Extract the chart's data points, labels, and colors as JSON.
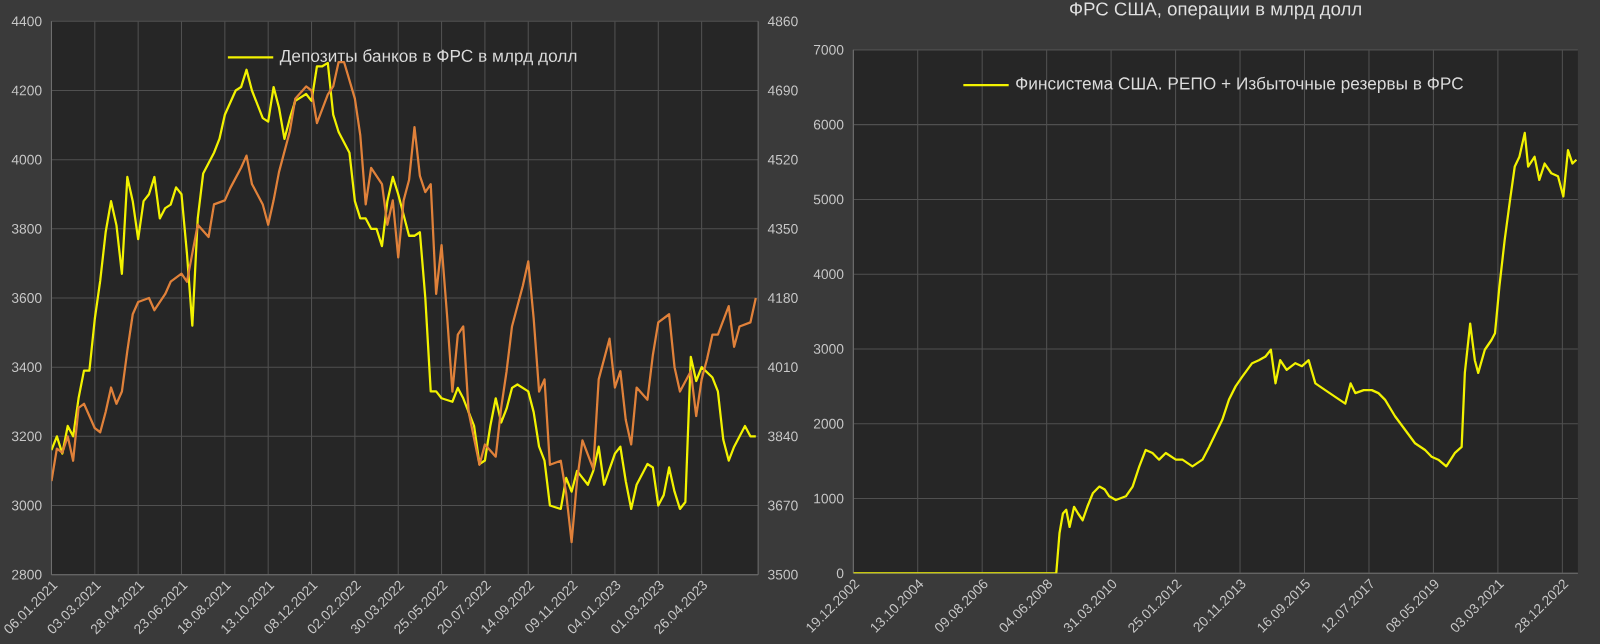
{
  "chart_data": [
    {
      "type": "line",
      "legend": "top",
      "grid": true,
      "xlim": [
        "2021-01-06",
        "2023-07-08"
      ],
      "xticks": [
        {
          "value": "2021-01-06",
          "label": "06.01.2021"
        },
        {
          "value": "2021-03-03",
          "label": "03.03.2021"
        },
        {
          "value": "2021-04-28",
          "label": "28.04.2021"
        },
        {
          "value": "2021-06-23",
          "label": "23.06.2021"
        },
        {
          "value": "2021-08-18",
          "label": "18.08.2021"
        },
        {
          "value": "2021-10-13",
          "label": "13.10.2021"
        },
        {
          "value": "2021-12-08",
          "label": "08.12.2021"
        },
        {
          "value": "2022-02-02",
          "label": "02.02.2022"
        },
        {
          "value": "2022-03-30",
          "label": "30.03.2022"
        },
        {
          "value": "2022-05-25",
          "label": "25.05.2022"
        },
        {
          "value": "2022-07-20",
          "label": "20.07.2022"
        },
        {
          "value": "2022-09-14",
          "label": "14.09.2022"
        },
        {
          "value": "2022-11-09",
          "label": "09.11.2022"
        },
        {
          "value": "2023-01-04",
          "label": "04.01.2023"
        },
        {
          "value": "2023-03-01",
          "label": "01.03.2023"
        },
        {
          "value": "2023-04-26",
          "label": "26.04.2023"
        }
      ],
      "ylim": [
        2800,
        4400
      ],
      "yticks": [
        2800,
        3000,
        3200,
        3400,
        3600,
        3800,
        4000,
        4200,
        4400
      ],
      "y2lim": [
        3500,
        4860
      ],
      "y2ticks": [
        3500,
        3670,
        3840,
        4010,
        4180,
        4350,
        4520,
        4690,
        4860
      ],
      "series": [
        {
          "name": "Депозиты банков в ФРС в млрд долл",
          "color": "#f2f200",
          "x": [
            "2021-01-06",
            "2021-01-13",
            "2021-01-20",
            "2021-01-27",
            "2021-02-03",
            "2021-02-10",
            "2021-02-17",
            "2021-02-24",
            "2021-03-03",
            "2021-03-10",
            "2021-03-17",
            "2021-03-24",
            "2021-03-31",
            "2021-04-07",
            "2021-04-14",
            "2021-04-21",
            "2021-04-28",
            "2021-05-05",
            "2021-05-12",
            "2021-05-19",
            "2021-05-26",
            "2021-06-02",
            "2021-06-09",
            "2021-06-16",
            "2021-06-23",
            "2021-06-30",
            "2021-07-07",
            "2021-07-14",
            "2021-07-21",
            "2021-08-04",
            "2021-08-11",
            "2021-08-18",
            "2021-09-01",
            "2021-09-08",
            "2021-09-15",
            "2021-09-22",
            "2021-10-06",
            "2021-10-13",
            "2021-10-20",
            "2021-10-27",
            "2021-11-03",
            "2021-11-10",
            "2021-11-17",
            "2021-12-01",
            "2021-12-08",
            "2021-12-15",
            "2021-12-22",
            "2021-12-29",
            "2022-01-05",
            "2022-01-12",
            "2022-01-26",
            "2022-02-02",
            "2022-02-09",
            "2022-02-16",
            "2022-02-23",
            "2022-03-02",
            "2022-03-09",
            "2022-03-16",
            "2022-03-23",
            "2022-03-30",
            "2022-04-13",
            "2022-04-20",
            "2022-04-27",
            "2022-05-04",
            "2022-05-11",
            "2022-05-18",
            "2022-05-25",
            "2022-06-08",
            "2022-06-15",
            "2022-06-22",
            "2022-07-06",
            "2022-07-13",
            "2022-07-20",
            "2022-07-27",
            "2022-08-03",
            "2022-08-10",
            "2022-08-17",
            "2022-08-24",
            "2022-08-31",
            "2022-09-14",
            "2022-09-21",
            "2022-09-28",
            "2022-10-05",
            "2022-10-12",
            "2022-10-26",
            "2022-11-02",
            "2022-11-09",
            "2022-11-16",
            "2022-11-30",
            "2022-12-07",
            "2022-12-14",
            "2022-12-21",
            "2023-01-04",
            "2023-01-11",
            "2023-01-18",
            "2023-01-25",
            "2023-02-01",
            "2023-02-15",
            "2023-02-22",
            "2023-03-01",
            "2023-03-08",
            "2023-03-15",
            "2023-03-22",
            "2023-03-29",
            "2023-04-05",
            "2023-04-12",
            "2023-04-19",
            "2023-04-26",
            "2023-05-10",
            "2023-05-17",
            "2023-05-24",
            "2023-05-31",
            "2023-06-07",
            "2023-06-21",
            "2023-06-28",
            "2023-07-05"
          ],
          "values": [
            3160,
            3200,
            3150,
            3230,
            3200,
            3310,
            3390,
            3390,
            3540,
            3650,
            3790,
            3880,
            3810,
            3670,
            3950,
            3880,
            3770,
            3880,
            3900,
            3950,
            3830,
            3860,
            3870,
            3920,
            3900,
            3730,
            3520,
            3830,
            3960,
            4020,
            4060,
            4130,
            4200,
            4210,
            4260,
            4200,
            4120,
            4110,
            4210,
            4150,
            4060,
            4120,
            4170,
            4190,
            4170,
            4270,
            4270,
            4280,
            4130,
            4080,
            4020,
            3880,
            3830,
            3830,
            3800,
            3800,
            3750,
            3880,
            3950,
            3900,
            3780,
            3780,
            3790,
            3600,
            3330,
            3330,
            3310,
            3300,
            3340,
            3310,
            3230,
            3120,
            3130,
            3230,
            3310,
            3240,
            3280,
            3340,
            3350,
            3330,
            3270,
            3170,
            3130,
            3000,
            2990,
            3080,
            3040,
            3100,
            3060,
            3100,
            3170,
            3060,
            3150,
            3170,
            3070,
            2990,
            3060,
            3120,
            3110,
            3000,
            3030,
            3110,
            3040,
            2990,
            3010,
            3430,
            3360,
            3400,
            3370,
            3330,
            3190,
            3130,
            3170,
            3230,
            3200,
            3200
          ]
        },
        {
          "color": "#e0813a",
          "axis": "y2",
          "x": [
            "2021-01-06",
            "2021-01-13",
            "2021-01-20",
            "2021-01-27",
            "2021-02-03",
            "2021-02-10",
            "2021-02-17",
            "2021-03-03",
            "2021-03-10",
            "2021-03-17",
            "2021-03-24",
            "2021-03-31",
            "2021-04-07",
            "2021-04-14",
            "2021-04-21",
            "2021-04-28",
            "2021-05-12",
            "2021-05-19",
            "2021-06-02",
            "2021-06-09",
            "2021-06-23",
            "2021-06-30",
            "2021-07-07",
            "2021-07-14",
            "2021-07-28",
            "2021-08-04",
            "2021-08-18",
            "2021-08-25",
            "2021-09-08",
            "2021-09-15",
            "2021-09-22",
            "2021-10-06",
            "2021-10-13",
            "2021-10-20",
            "2021-10-27",
            "2021-11-10",
            "2021-11-17",
            "2021-12-01",
            "2021-12-08",
            "2021-12-15",
            "2021-12-29",
            "2022-01-05",
            "2022-01-12",
            "2022-01-19",
            "2022-02-02",
            "2022-02-09",
            "2022-02-16",
            "2022-02-23",
            "2022-03-09",
            "2022-03-16",
            "2022-03-23",
            "2022-03-30",
            "2022-04-06",
            "2022-04-13",
            "2022-04-20",
            "2022-04-27",
            "2022-05-04",
            "2022-05-11",
            "2022-05-18",
            "2022-05-25",
            "2022-06-01",
            "2022-06-08",
            "2022-06-15",
            "2022-06-22",
            "2022-06-29",
            "2022-07-13",
            "2022-07-20",
            "2022-08-03",
            "2022-08-10",
            "2022-08-17",
            "2022-08-24",
            "2022-09-07",
            "2022-09-14",
            "2022-09-21",
            "2022-09-28",
            "2022-10-05",
            "2022-10-12",
            "2022-10-26",
            "2022-11-02",
            "2022-11-09",
            "2022-11-16",
            "2022-11-23",
            "2022-12-07",
            "2022-12-14",
            "2022-12-28",
            "2023-01-04",
            "2023-01-11",
            "2023-01-18",
            "2023-01-25",
            "2023-02-01",
            "2023-02-15",
            "2023-02-22",
            "2023-03-01",
            "2023-03-15",
            "2023-03-22",
            "2023-03-29",
            "2023-04-12",
            "2023-04-19",
            "2023-04-26",
            "2023-05-03",
            "2023-05-10",
            "2023-05-17",
            "2023-05-31",
            "2023-06-07",
            "2023-06-14",
            "2023-06-28",
            "2023-07-05"
          ],
          "values": [
            3730,
            3810,
            3800,
            3840,
            3780,
            3910,
            3920,
            3860,
            3850,
            3900,
            3960,
            3920,
            3950,
            4050,
            4140,
            4170,
            4180,
            4150,
            4190,
            4220,
            4240,
            4220,
            4290,
            4360,
            4330,
            4410,
            4420,
            4450,
            4500,
            4530,
            4460,
            4410,
            4360,
            4420,
            4490,
            4590,
            4670,
            4700,
            4690,
            4610,
            4680,
            4700,
            4760,
            4760,
            4670,
            4580,
            4410,
            4500,
            4460,
            4360,
            4420,
            4280,
            4420,
            4470,
            4600,
            4480,
            4440,
            4460,
            4190,
            4310,
            4140,
            3950,
            4090,
            4110,
            3900,
            3770,
            3820,
            3790,
            3910,
            4000,
            4110,
            4210,
            4270,
            4130,
            3950,
            3980,
            3770,
            3780,
            3700,
            3580,
            3730,
            3830,
            3760,
            3980,
            4080,
            3960,
            4000,
            3880,
            3820,
            3960,
            3930,
            4040,
            4120,
            4140,
            4010,
            3950,
            4000,
            3890,
            3980,
            4030,
            4090,
            4090,
            4160,
            4060,
            4110,
            4120,
            4180
          ]
        }
      ]
    },
    {
      "type": "line",
      "title": "ФРС США, операции в млрд долл",
      "legend": "top",
      "grid": true,
      "xlim": [
        "2002-12-19",
        "2023-06-06"
      ],
      "xticks": [
        {
          "value": "2002-12-19",
          "label": "19.12.2002"
        },
        {
          "value": "2004-10-13",
          "label": "13.10.2004"
        },
        {
          "value": "2006-08-09",
          "label": "09.08.2006"
        },
        {
          "value": "2008-06-04",
          "label": "04.06.2008"
        },
        {
          "value": "2010-03-31",
          "label": "31.03.2010"
        },
        {
          "value": "2012-01-25",
          "label": "25.01.2012"
        },
        {
          "value": "2013-11-20",
          "label": "20.11.2013"
        },
        {
          "value": "2015-09-16",
          "label": "16.09.2015"
        },
        {
          "value": "2017-07-12",
          "label": "12.07.2017"
        },
        {
          "value": "2019-05-08",
          "label": "08.05.2019"
        },
        {
          "value": "2021-03-03",
          "label": "03.03.2021"
        },
        {
          "value": "2022-12-28",
          "label": "28.12.2022"
        }
      ],
      "ylim": [
        0,
        7000
      ],
      "yticks": [
        0,
        1000,
        2000,
        3000,
        4000,
        5000,
        6000,
        7000
      ],
      "series": [
        {
          "name": "Финсистема США. РЕПО + Избыточные резервы в ФРС",
          "color": "#f2f200",
          "x": [
            "2002-12-19",
            "2008-09-11",
            "2008-10-15",
            "2008-11-19",
            "2008-12-23",
            "2009-01-27",
            "2009-03-14",
            "2009-04-24",
            "2009-06-11",
            "2009-07-29",
            "2009-09-23",
            "2009-11-30",
            "2010-01-25",
            "2010-03-12",
            "2010-05-19",
            "2010-08-30",
            "2010-11-08",
            "2011-01-16",
            "2011-03-23",
            "2011-06-01",
            "2011-08-08",
            "2011-10-16",
            "2012-01-28",
            "2012-04-05",
            "2012-07-17",
            "2012-10-28",
            "2013-01-05",
            "2013-03-13",
            "2013-05-20",
            "2013-07-28",
            "2013-10-05",
            "2013-12-13",
            "2014-03-25",
            "2014-06-02",
            "2014-08-10",
            "2014-10-04",
            "2014-11-21",
            "2015-01-08",
            "2015-03-16",
            "2015-06-14",
            "2015-08-21",
            "2015-10-29",
            "2016-01-06",
            "2016-04-17",
            "2016-07-29",
            "2016-11-10",
            "2017-01-04",
            "2017-02-21",
            "2017-05-19",
            "2017-08-10",
            "2017-10-18",
            "2017-12-26",
            "2018-04-07",
            "2018-07-19",
            "2018-10-30",
            "2019-02-11",
            "2019-04-19",
            "2019-06-27",
            "2019-09-18",
            "2019-12-16",
            "2020-02-23",
            "2020-03-27",
            "2020-05-21",
            "2020-07-08",
            "2020-08-12",
            "2020-10-19",
            "2020-12-27",
            "2021-02-01",
            "2021-03-18",
            "2021-05-12",
            "2021-07-06",
            "2021-08-24",
            "2021-10-11",
            "2021-12-05",
            "2022-01-09",
            "2022-03-16",
            "2022-05-04",
            "2022-06-28",
            "2022-09-05",
            "2022-11-13",
            "2023-01-07",
            "2023-02-24",
            "2023-04-11",
            "2023-05-22"
          ],
          "values": [
            0,
            0,
            540,
            800,
            850,
            620,
            890,
            800,
            710,
            890,
            1070,
            1160,
            1120,
            1030,
            980,
            1030,
            1160,
            1430,
            1650,
            1610,
            1520,
            1610,
            1520,
            1520,
            1430,
            1520,
            1690,
            1870,
            2050,
            2320,
            2500,
            2630,
            2810,
            2850,
            2900,
            2990,
            2540,
            2850,
            2720,
            2810,
            2770,
            2850,
            2540,
            2450,
            2360,
            2270,
            2540,
            2410,
            2450,
            2450,
            2410,
            2320,
            2100,
            1920,
            1740,
            1650,
            1560,
            1520,
            1430,
            1610,
            1690,
            2680,
            3340,
            2850,
            2680,
            2990,
            3120,
            3210,
            3830,
            4460,
            4990,
            5440,
            5570,
            5890,
            5440,
            5570,
            5260,
            5480,
            5350,
            5310,
            5040,
            5660,
            5480,
            5530
          ]
        }
      ]
    }
  ]
}
